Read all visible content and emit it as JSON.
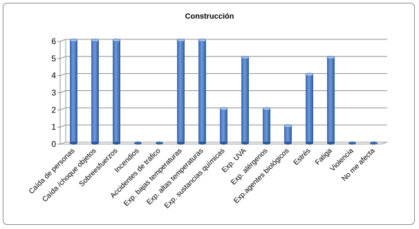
{
  "chart_data": {
    "type": "bar",
    "title": "Construcción",
    "xlabel": "",
    "ylabel": "",
    "categories": [
      "Caída de personas",
      "Caída /choque objetos",
      "Sobreesfuerzos",
      "Incendios",
      "Accidentes de tráfico",
      "Exp. bajas temperaturas",
      "Exp. altas temperaturas",
      "Exp. sustancias químicas",
      "Exp. UVA",
      "Exp. alérgenos",
      "Exp.agentes biológicos",
      "Estrés",
      "Fatiga",
      "Violencia",
      "No me afecta"
    ],
    "values": [
      6,
      6,
      6,
      0,
      0,
      6,
      6,
      2,
      5,
      2,
      1,
      4,
      5,
      0,
      0
    ],
    "ylim": [
      0,
      6
    ],
    "yticks": [
      0,
      1,
      2,
      3,
      4,
      5,
      6
    ],
    "grid": true,
    "legend": "none",
    "bar_color": "#4a7ec9",
    "bar_dark": "#2f5a97",
    "bar_light": "#8fb3e6"
  }
}
